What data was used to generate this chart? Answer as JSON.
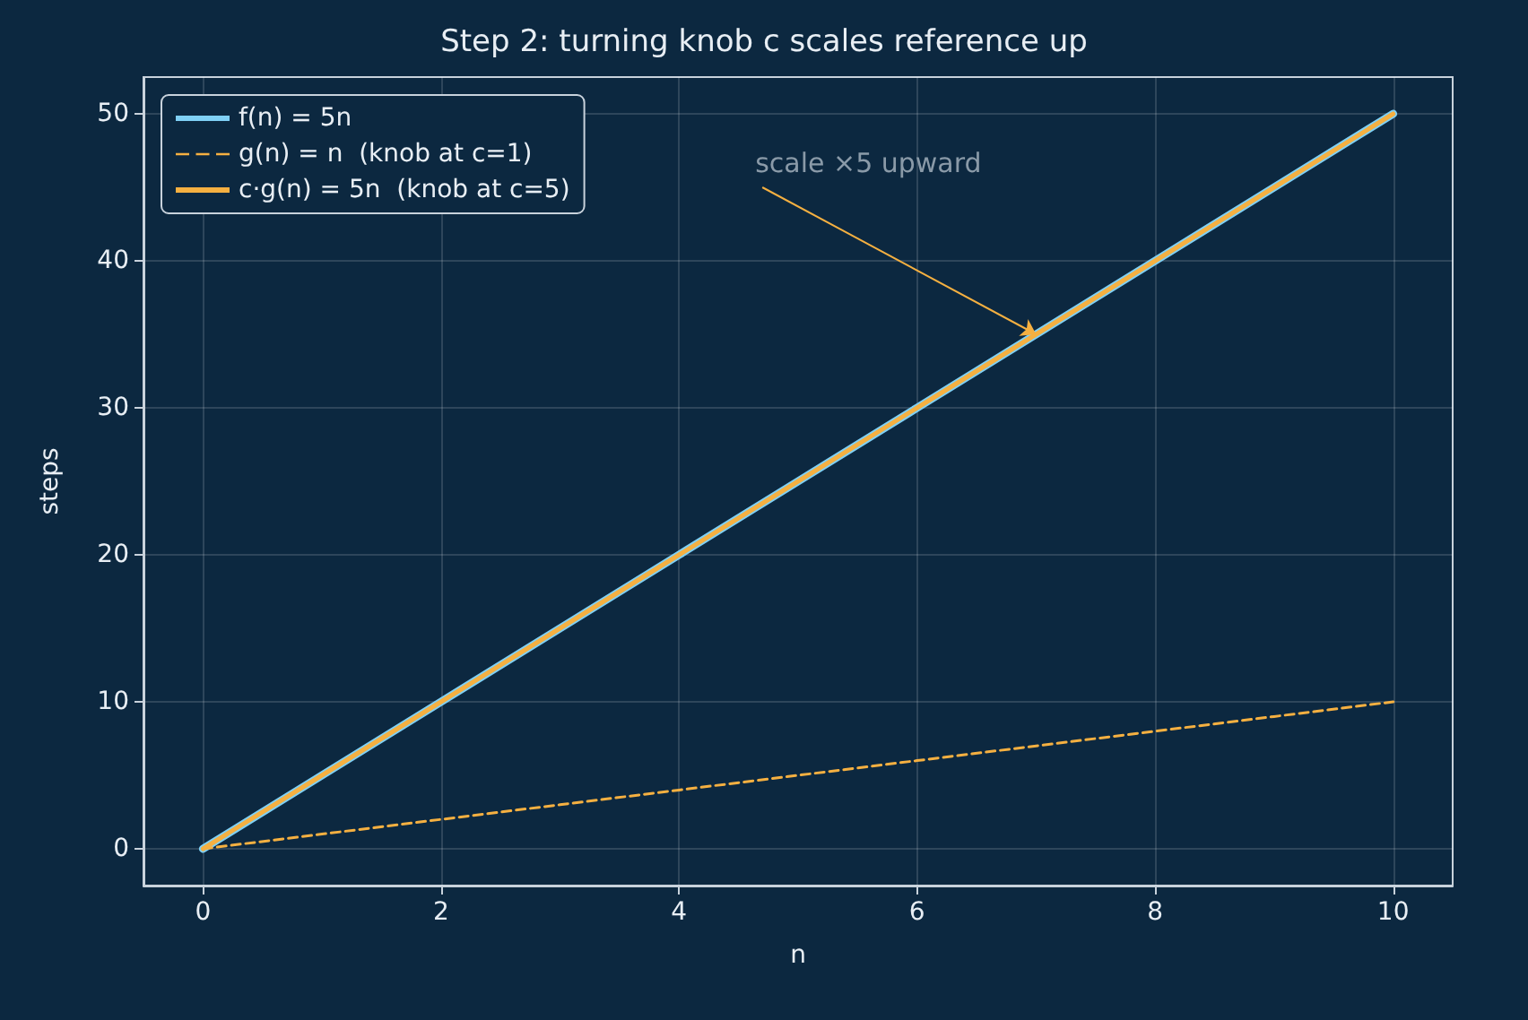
{
  "chart_data": {
    "type": "line",
    "title": "Step 2: turning knob c scales reference up",
    "xlabel": "n",
    "ylabel": "steps",
    "x": [
      0,
      1,
      2,
      3,
      4,
      5,
      6,
      7,
      8,
      9,
      10
    ],
    "series": [
      {
        "name": "f(n) = 5n",
        "color": "#7fd0f5",
        "values": [
          0,
          5,
          10,
          15,
          20,
          25,
          30,
          35,
          40,
          45,
          50
        ]
      },
      {
        "name": "g(n) = n  (knob at c=1)",
        "color": "#f5b041",
        "line_style": "dashed",
        "values": [
          0,
          1,
          2,
          3,
          4,
          5,
          6,
          7,
          8,
          9,
          10
        ]
      },
      {
        "name": "c·g(n) = 5n  (knob at c=5)",
        "color": "#f5b041",
        "values": [
          0,
          5,
          10,
          15,
          20,
          25,
          30,
          35,
          40,
          45,
          50
        ]
      }
    ],
    "annotations": [
      {
        "text": "scale ×5 upward",
        "x": 7,
        "y": 35
      }
    ],
    "xlim": [
      -0.5,
      10.5
    ],
    "xticks": [
      0,
      2,
      4,
      6,
      8,
      10
    ],
    "ylim": [
      -2.5,
      52.5
    ],
    "yticks": [
      0,
      10,
      20,
      30,
      40,
      50
    ],
    "grid": true,
    "legend": "top left",
    "marker": "none",
    "line_style": "solid"
  }
}
